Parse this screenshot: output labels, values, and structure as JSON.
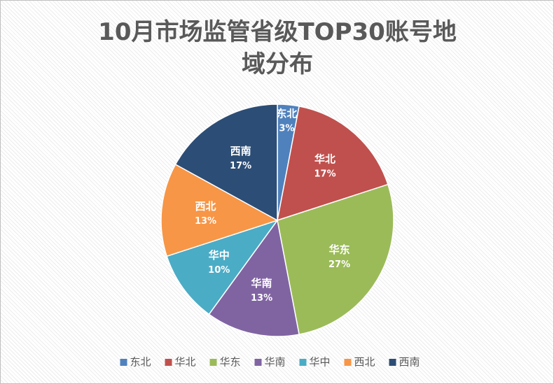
{
  "chart_data": {
    "type": "pie",
    "title": "10月市场监管省级TOP30账号地域分布",
    "categories": [
      "东北",
      "华北",
      "华东",
      "华南",
      "华中",
      "西北",
      "西南"
    ],
    "values": [
      3,
      17,
      27,
      13,
      10,
      13,
      17
    ],
    "value_labels": [
      "3%",
      "17%",
      "27%",
      "13%",
      "10%",
      "13%",
      "17%"
    ],
    "colors": [
      "#4f81bd",
      "#c0504d",
      "#9bbb59",
      "#8064a2",
      "#4bacc6",
      "#f79646",
      "#2c4d75"
    ],
    "legend": "bottom"
  }
}
